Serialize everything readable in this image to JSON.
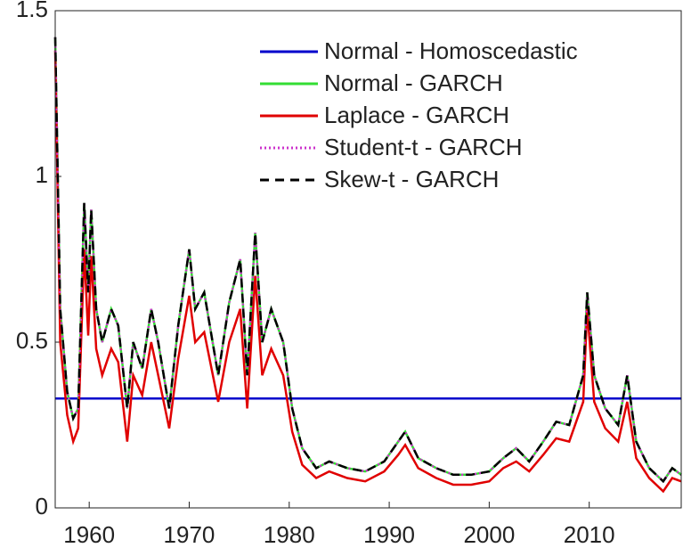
{
  "chart_data": {
    "type": "line",
    "x": [
      1956.6,
      1957.1,
      1957.8,
      1958.4,
      1958.9,
      1959.5,
      1959.9,
      1960.2,
      1960.7,
      1961.3,
      1962.2,
      1962.9,
      1963.8,
      1964.4,
      1965.3,
      1966.2,
      1966.9,
      1968.0,
      1968.9,
      1970.0,
      1970.6,
      1971.5,
      1972.9,
      1974.0,
      1975.1,
      1975.8,
      1976.6,
      1977.3,
      1978.2,
      1979.4,
      1980.3,
      1981.3,
      1982.7,
      1984.0,
      1985.8,
      1987.6,
      1989.5,
      1990.9,
      1991.6,
      1992.9,
      1994.7,
      1996.4,
      1998.2,
      2000.0,
      2001.4,
      2002.7,
      2004.0,
      2005.4,
      2006.7,
      2008.0,
      2009.4,
      2009.8,
      2010.5,
      2011.6,
      2012.9,
      2013.8,
      2014.7,
      2016.0,
      2017.4,
      2018.3,
      2019.2
    ],
    "series": [
      {
        "name": "Normal - Homoscedastic",
        "color": "#0000cc",
        "dash": "solid",
        "values": [
          0.33,
          0.33,
          0.33,
          0.33,
          0.33,
          0.33,
          0.33,
          0.33,
          0.33,
          0.33,
          0.33,
          0.33,
          0.33,
          0.33,
          0.33,
          0.33,
          0.33,
          0.33,
          0.33,
          0.33,
          0.33,
          0.33,
          0.33,
          0.33,
          0.33,
          0.33,
          0.33,
          0.33,
          0.33,
          0.33,
          0.33,
          0.33,
          0.33,
          0.33,
          0.33,
          0.33,
          0.33,
          0.33,
          0.33,
          0.33,
          0.33,
          0.33,
          0.33,
          0.33,
          0.33,
          0.33,
          0.33,
          0.33,
          0.33,
          0.33,
          0.33,
          0.33,
          0.33,
          0.33,
          0.33,
          0.33,
          0.33,
          0.33,
          0.33,
          0.33,
          0.33
        ]
      },
      {
        "name": "Normal - GARCH",
        "color": "#33dd33",
        "dash": "solid",
        "values": [
          1.42,
          0.6,
          0.35,
          0.27,
          0.3,
          0.92,
          0.65,
          0.9,
          0.6,
          0.5,
          0.6,
          0.55,
          0.3,
          0.5,
          0.42,
          0.6,
          0.5,
          0.3,
          0.55,
          0.78,
          0.6,
          0.65,
          0.4,
          0.62,
          0.75,
          0.4,
          0.83,
          0.5,
          0.6,
          0.5,
          0.3,
          0.18,
          0.12,
          0.14,
          0.12,
          0.11,
          0.14,
          0.2,
          0.23,
          0.15,
          0.12,
          0.1,
          0.1,
          0.11,
          0.15,
          0.18,
          0.14,
          0.2,
          0.26,
          0.25,
          0.4,
          0.65,
          0.4,
          0.3,
          0.25,
          0.4,
          0.2,
          0.12,
          0.08,
          0.12,
          0.1
        ]
      },
      {
        "name": "Laplace - GARCH",
        "color": "#e00000",
        "dash": "solid",
        "values": [
          1.38,
          0.5,
          0.28,
          0.2,
          0.24,
          0.78,
          0.52,
          0.76,
          0.48,
          0.4,
          0.48,
          0.44,
          0.2,
          0.4,
          0.34,
          0.5,
          0.4,
          0.24,
          0.45,
          0.64,
          0.5,
          0.53,
          0.32,
          0.5,
          0.6,
          0.3,
          0.7,
          0.4,
          0.48,
          0.4,
          0.23,
          0.13,
          0.09,
          0.11,
          0.09,
          0.08,
          0.11,
          0.16,
          0.19,
          0.12,
          0.09,
          0.07,
          0.07,
          0.08,
          0.12,
          0.14,
          0.11,
          0.16,
          0.21,
          0.2,
          0.32,
          0.6,
          0.32,
          0.24,
          0.2,
          0.32,
          0.15,
          0.09,
          0.05,
          0.09,
          0.08
        ]
      },
      {
        "name": "Student-t - GARCH",
        "color": "#cc33cc",
        "dash": "dotted",
        "values": [
          1.42,
          0.6,
          0.35,
          0.27,
          0.3,
          0.92,
          0.65,
          0.9,
          0.6,
          0.5,
          0.6,
          0.55,
          0.3,
          0.5,
          0.42,
          0.6,
          0.5,
          0.3,
          0.55,
          0.78,
          0.6,
          0.65,
          0.4,
          0.62,
          0.75,
          0.4,
          0.83,
          0.5,
          0.6,
          0.5,
          0.3,
          0.18,
          0.12,
          0.14,
          0.12,
          0.11,
          0.14,
          0.2,
          0.23,
          0.15,
          0.12,
          0.1,
          0.1,
          0.11,
          0.15,
          0.18,
          0.14,
          0.2,
          0.26,
          0.25,
          0.4,
          0.65,
          0.4,
          0.3,
          0.25,
          0.4,
          0.2,
          0.12,
          0.08,
          0.12,
          0.1
        ]
      },
      {
        "name": "Skew-t - GARCH",
        "color": "#000000",
        "dash": "dashed",
        "values": [
          1.42,
          0.6,
          0.35,
          0.27,
          0.3,
          0.92,
          0.65,
          0.9,
          0.6,
          0.5,
          0.6,
          0.55,
          0.3,
          0.5,
          0.42,
          0.6,
          0.5,
          0.3,
          0.55,
          0.78,
          0.6,
          0.65,
          0.4,
          0.62,
          0.75,
          0.4,
          0.83,
          0.5,
          0.6,
          0.5,
          0.3,
          0.18,
          0.12,
          0.14,
          0.12,
          0.11,
          0.14,
          0.2,
          0.23,
          0.15,
          0.12,
          0.1,
          0.1,
          0.11,
          0.15,
          0.18,
          0.14,
          0.2,
          0.26,
          0.25,
          0.4,
          0.65,
          0.4,
          0.3,
          0.25,
          0.4,
          0.2,
          0.12,
          0.08,
          0.12,
          0.1
        ]
      }
    ],
    "xlim": [
      1956.6,
      2019.2
    ],
    "xticks": [
      1960,
      1970,
      1980,
      1990,
      2000,
      2010
    ],
    "ylim": [
      0,
      1.5
    ],
    "yticks": [
      0,
      0.5,
      1,
      1.5
    ],
    "grid": false,
    "legend": "upper right"
  }
}
